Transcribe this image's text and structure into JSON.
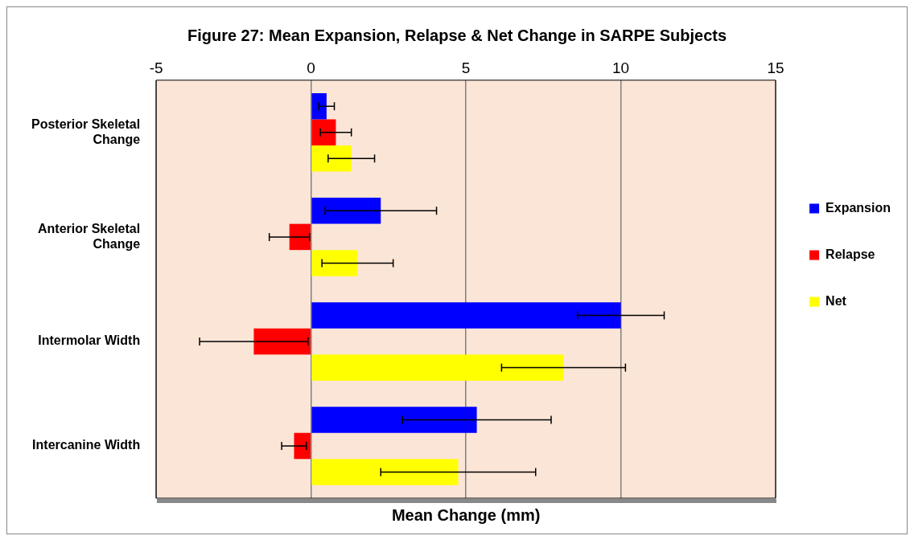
{
  "chart_data": {
    "type": "bar",
    "orientation": "horizontal",
    "title": "Figure 27: Mean Expansion, Relapse & Net Change in SARPE Subjects",
    "xlabel": "Mean Change (mm)",
    "categories": [
      "Posterior Skeletal Change",
      "Anterior Skeletal Change",
      "Intermolar Width",
      "Intercanine Width"
    ],
    "series": [
      {
        "name": "Expansion",
        "color": "#0000ff",
        "values": [
          0.5,
          2.25,
          10.0,
          5.35
        ],
        "errors": [
          0.25,
          1.8,
          1.4,
          2.4
        ]
      },
      {
        "name": "Relapse",
        "color": "#ff0000",
        "values": [
          0.8,
          -0.7,
          -1.85,
          -0.55
        ],
        "errors": [
          0.5,
          0.65,
          1.75,
          0.4
        ]
      },
      {
        "name": "Net",
        "color": "#ffff00",
        "values": [
          1.3,
          1.5,
          8.15,
          4.75
        ],
        "errors": [
          0.75,
          1.15,
          2.0,
          2.5
        ]
      }
    ],
    "xlim": [
      -5,
      15
    ],
    "xticks": [
      -5,
      0,
      5,
      10,
      15
    ],
    "grid": "x",
    "legend": "right"
  }
}
